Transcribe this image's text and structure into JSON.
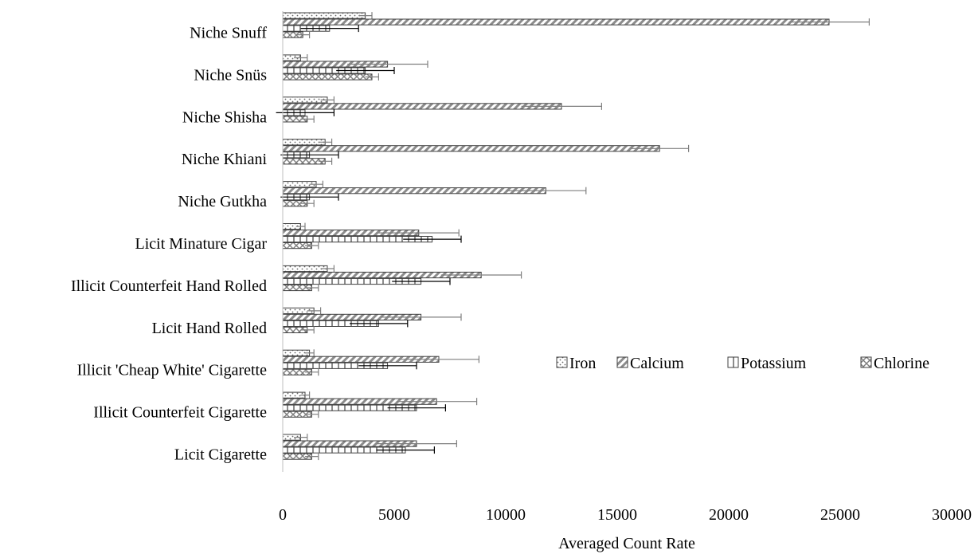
{
  "chart_data": {
    "type": "bar",
    "orientation": "horizontal",
    "title": "",
    "xlabel": "Averaged Count Rate",
    "ylabel": "",
    "xlim": [
      0,
      30000
    ],
    "x_ticks": [
      "0",
      "5000",
      "10000",
      "15000",
      "20000",
      "25000",
      "30000"
    ],
    "x_tick_values": [
      0,
      5000,
      10000,
      15000,
      20000,
      25000,
      30000
    ],
    "grid": false,
    "legend_placement": "right",
    "categories": [
      "Niche Snuff",
      "Niche Snüs",
      "Niche Shisha",
      "Niche Khiani",
      "Niche Gutkha",
      "Licit Minature Cigar",
      "Illicit Counterfeit Hand Rolled",
      "Licit Hand Rolled",
      "Illicit 'Cheap White' Cigarette",
      "Illicit Counterfeit Cigarette",
      "Licit Cigarette"
    ],
    "series": [
      {
        "name": "Iron",
        "values": [
          3700,
          800,
          2000,
          1900,
          1500,
          800,
          2000,
          1400,
          1200,
          1000,
          800
        ],
        "errors": [
          300,
          300,
          300,
          300,
          300,
          200,
          300,
          300,
          200,
          200,
          300
        ]
      },
      {
        "name": "Calcium",
        "values": [
          24500,
          4700,
          12500,
          16900,
          11800,
          6100,
          8900,
          6200,
          7000,
          6900,
          6000
        ],
        "errors": [
          1800,
          1800,
          1800,
          1300,
          1800,
          1800,
          1800,
          1800,
          1800,
          1800,
          1800
        ]
      },
      {
        "name": "Potassium",
        "values": [
          2100,
          3700,
          1000,
          1200,
          1200,
          6700,
          6200,
          4300,
          4700,
          6000,
          5500
        ],
        "errors": [
          1300,
          1300,
          1300,
          1300,
          1300,
          1300,
          1300,
          1300,
          1300,
          1300,
          1300
        ]
      },
      {
        "name": "Chlorine",
        "values": [
          900,
          4000,
          1100,
          1900,
          1100,
          1300,
          1300,
          1100,
          1300,
          1300,
          1300
        ],
        "errors": [
          300,
          300,
          300,
          300,
          300,
          300,
          300,
          300,
          300,
          300,
          300
        ]
      }
    ],
    "colors": {
      "Iron": "#d9d9d9",
      "Calcium": "#bfbfbf",
      "Potassium": "#e0e0e0",
      "Chlorine": "#d0d0d0",
      "outline": "#404040",
      "error_dark": "#000000",
      "error_light": "#7f7f7f",
      "axis": "#bfbfbf"
    }
  }
}
